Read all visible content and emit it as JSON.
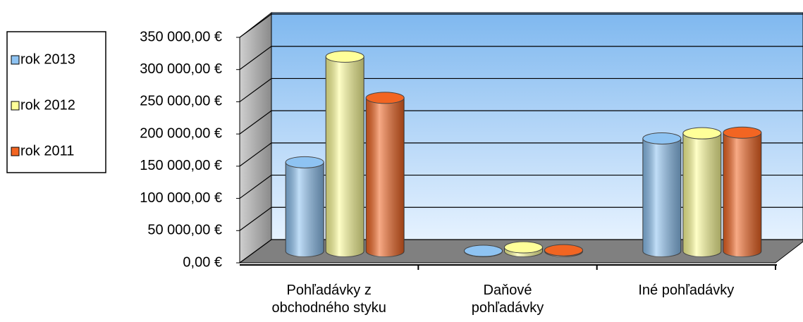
{
  "chart_data": {
    "type": "bar3d",
    "categories": [
      "Pohľadávky z\nobchodného styku",
      "Daňové\npohľadávky",
      "Iné pohľadávky"
    ],
    "series": [
      {
        "name": "rok 2013",
        "color": "#8ec3f2",
        "values": [
          138000,
          500,
          175000
        ]
      },
      {
        "name": "rok 2012",
        "color": "#ffff99",
        "values": [
          302000,
          6000,
          183000
        ]
      },
      {
        "name": "rok 2011",
        "color": "#f26522",
        "values": [
          238000,
          1500,
          184000
        ]
      }
    ],
    "ylim": [
      0,
      350000
    ],
    "yticks": [
      {
        "value": 0,
        "label": "0,00 €"
      },
      {
        "value": 50000,
        "label": "50 000,00 €"
      },
      {
        "value": 100000,
        "label": "100 000,00 €"
      },
      {
        "value": 150000,
        "label": "150 000,00 €"
      },
      {
        "value": 200000,
        "label": "200 000,00 €"
      },
      {
        "value": 250000,
        "label": "250 000,00 €"
      },
      {
        "value": 300000,
        "label": "300 000,00 €"
      },
      {
        "value": 350000,
        "label": "350 000,00 €"
      }
    ],
    "grid": true,
    "legend": "left"
  }
}
